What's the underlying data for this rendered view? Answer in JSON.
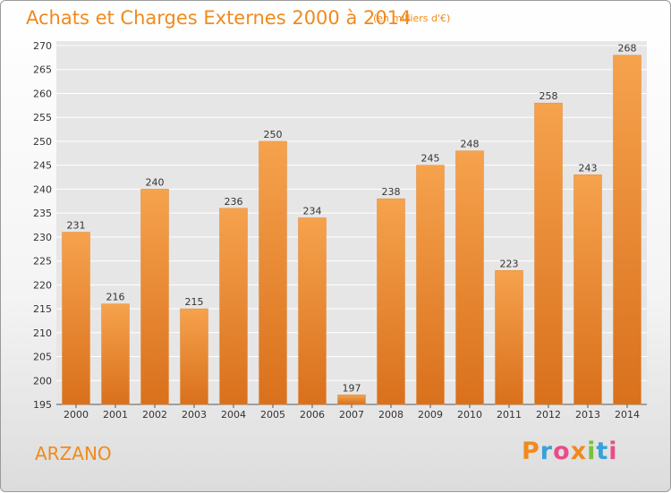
{
  "header": {
    "title": "Achats et Charges Externes 2000 à 2014",
    "subtitle": "(en milliers d'€)"
  },
  "footer": {
    "commune": "ARZANO",
    "logo_text": "Proxiti",
    "logo_colors": [
      "#f08a1c",
      "#3aa0d8",
      "#e84c8b",
      "#f08a1c",
      "#7bbf3a",
      "#3aa0d8",
      "#e84c8b"
    ]
  },
  "colors": {
    "bar_light": "#f6a24d",
    "bar_dark": "#d9701c",
    "accent": "#f08a1c",
    "grid": "#ffffff",
    "axis_text": "#333333"
  },
  "chart_data": {
    "type": "bar",
    "categories": [
      "2000",
      "2001",
      "2002",
      "2003",
      "2004",
      "2005",
      "2006",
      "2007",
      "2008",
      "2009",
      "2010",
      "2011",
      "2012",
      "2013",
      "2014"
    ],
    "values": [
      231,
      216,
      240,
      215,
      236,
      250,
      234,
      197,
      238,
      245,
      248,
      223,
      258,
      243,
      268
    ],
    "ylim": [
      195,
      270
    ],
    "yticks": [
      195,
      200,
      205,
      210,
      215,
      220,
      225,
      230,
      235,
      240,
      245,
      250,
      255,
      260,
      265,
      270
    ],
    "grid": true
  }
}
